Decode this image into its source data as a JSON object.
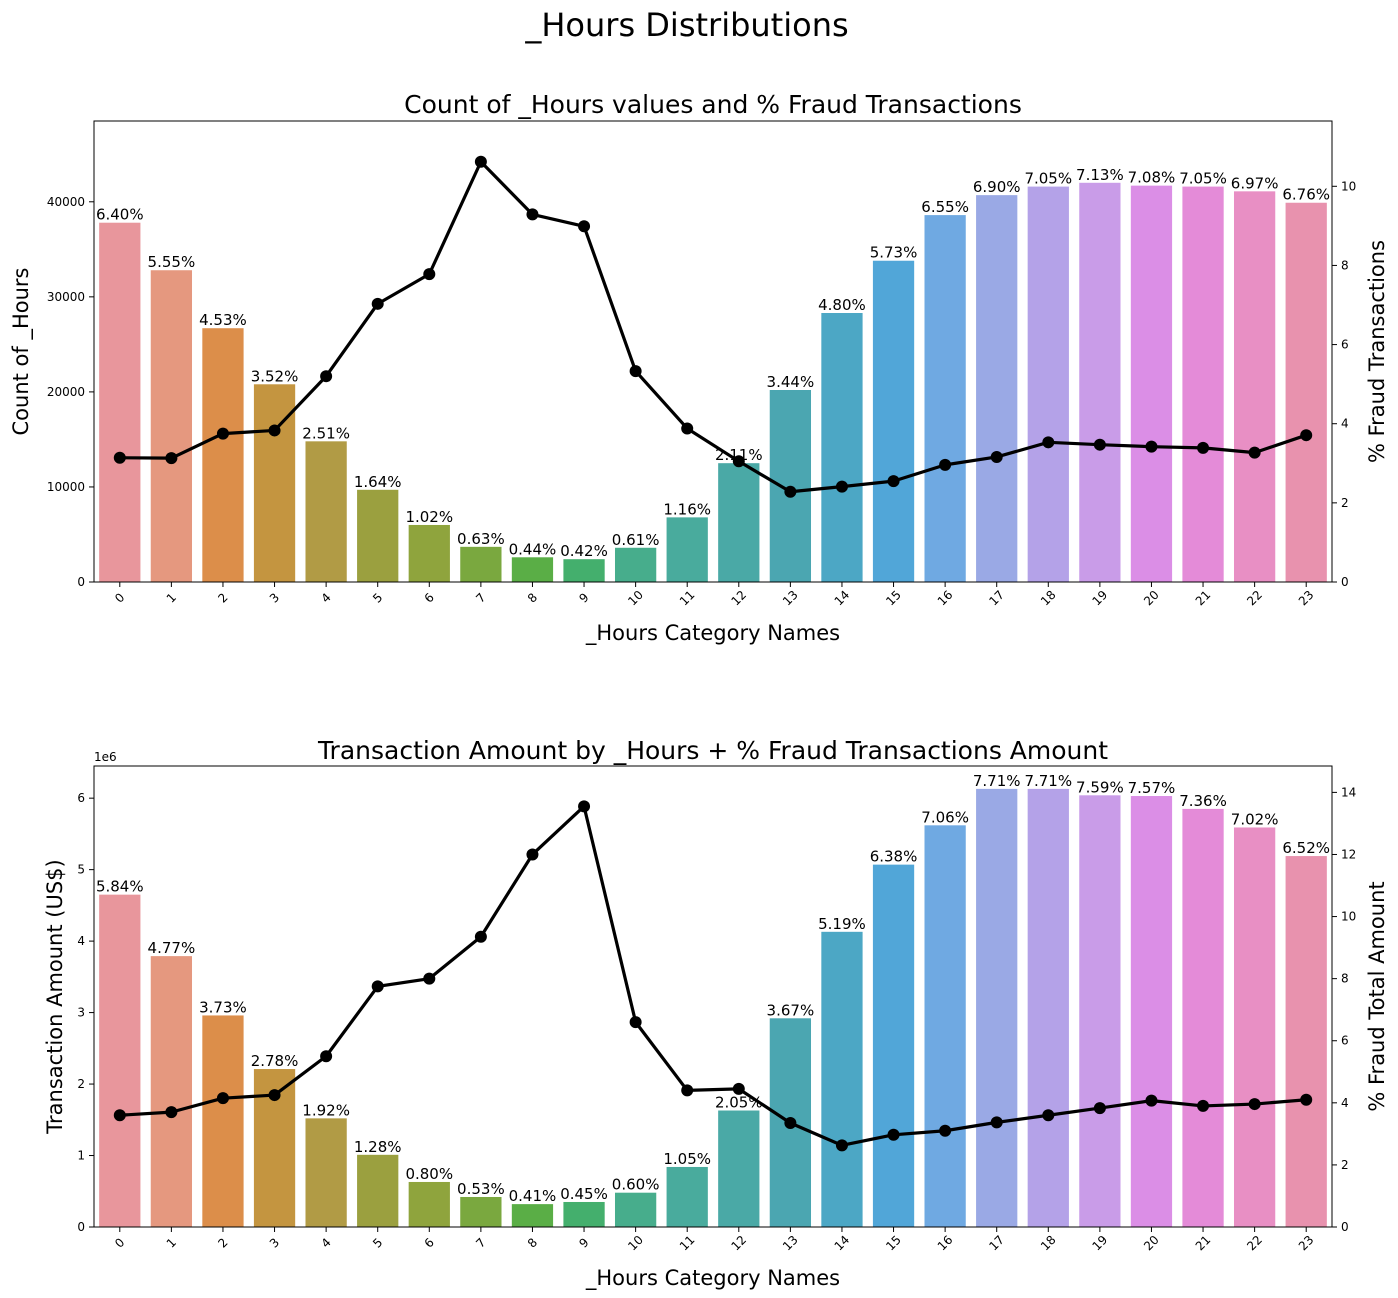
{
  "figure": {
    "suptitle": "_Hours Distributions"
  },
  "chart_data": [
    {
      "type": "bar",
      "title": "Count of _Hours values and % Fraud Transactions",
      "xlabel": "_Hours Category Names",
      "ylabel": "Count of _Hours",
      "y2label": "% Fraud Transactions",
      "categories": [
        "0",
        "1",
        "2",
        "3",
        "4",
        "5",
        "6",
        "7",
        "8",
        "9",
        "10",
        "11",
        "12",
        "13",
        "14",
        "15",
        "16",
        "17",
        "18",
        "19",
        "20",
        "21",
        "22",
        "23"
      ],
      "ylim": [
        0,
        48500
      ],
      "yticks": [
        0,
        10000,
        20000,
        30000,
        40000
      ],
      "ytick_labels": [
        "0",
        "10000",
        "20000",
        "30000",
        "40000"
      ],
      "y2lim": [
        0,
        11.65
      ],
      "y2ticks": [
        0,
        2,
        4,
        6,
        8,
        10
      ],
      "series": [
        {
          "name": "Count of _Hours",
          "type": "bar",
          "values": [
            37800,
            32800,
            26700,
            20800,
            14800,
            9700,
            6000,
            3700,
            2600,
            2400,
            3600,
            6800,
            12500,
            20200,
            28300,
            33800,
            38600,
            40700,
            41600,
            42000,
            41700,
            41600,
            41100,
            39900
          ]
        },
        {
          "name": "% Fraud Transactions",
          "type": "line",
          "axis": "secondary",
          "values": [
            3.14,
            3.13,
            3.75,
            3.83,
            5.2,
            7.03,
            7.78,
            10.62,
            9.29,
            8.99,
            5.33,
            3.88,
            3.05,
            2.28,
            2.41,
            2.55,
            2.96,
            3.16,
            3.53,
            3.47,
            3.42,
            3.39,
            3.27,
            3.71
          ]
        }
      ],
      "data_labels": [
        "6.40%",
        "5.55%",
        "4.53%",
        "3.52%",
        "2.51%",
        "1.64%",
        "1.02%",
        "0.63%",
        "0.44%",
        "0.42%",
        "0.61%",
        "1.16%",
        "2.11%",
        "3.44%",
        "4.80%",
        "5.73%",
        "6.55%",
        "6.90%",
        "7.05%",
        "7.13%",
        "7.08%",
        "7.05%",
        "6.97%",
        "6.76%"
      ],
      "bar_colors": [
        "#e8969c",
        "#e5987f",
        "#dc8e4a",
        "#c49540",
        "#b19b45",
        "#9ba03f",
        "#8fa43d",
        "#7aa83f",
        "#5aae46",
        "#44af6d",
        "#47ad8c",
        "#49ab9d",
        "#4aa9a6",
        "#4ba6b1",
        "#4ca7c5",
        "#51a6d8",
        "#6fa9e2",
        "#9aa9e5",
        "#b4a2e8",
        "#c99ce8",
        "#db8ee6",
        "#e48bd8",
        "#e88fc4",
        "#e892ae"
      ],
      "grid": false
    },
    {
      "type": "bar",
      "title": "Transaction Amount by _Hours + % Fraud Transactions Amount",
      "xlabel": "_Hours Category Names",
      "ylabel": "Transaction Amount (US$)",
      "y2label": "% Fraud Total Amount",
      "scale_label": "1e6",
      "categories": [
        "0",
        "1",
        "2",
        "3",
        "4",
        "5",
        "6",
        "7",
        "8",
        "9",
        "10",
        "11",
        "12",
        "13",
        "14",
        "15",
        "16",
        "17",
        "18",
        "19",
        "20",
        "21",
        "22",
        "23"
      ],
      "ylim": [
        0,
        6.45
      ],
      "yticks": [
        0,
        1,
        2,
        3,
        4,
        5,
        6
      ],
      "ytick_labels": [
        "0",
        "1",
        "2",
        "3",
        "4",
        "5",
        "6"
      ],
      "y2lim": [
        0,
        14.85
      ],
      "y2ticks": [
        0,
        2,
        4,
        6,
        8,
        10,
        12,
        14
      ],
      "series": [
        {
          "name": "Transaction Amount (US$)",
          "type": "bar",
          "values": [
            4.65,
            3.79,
            2.96,
            2.21,
            1.52,
            1.01,
            0.63,
            0.42,
            0.32,
            0.35,
            0.48,
            0.84,
            1.63,
            2.92,
            4.13,
            5.07,
            5.62,
            6.13,
            6.13,
            6.04,
            6.03,
            5.85,
            5.59,
            5.19
          ]
        },
        {
          "name": "% Fraud Total Amount",
          "type": "line",
          "axis": "secondary",
          "values": [
            3.6,
            3.7,
            4.15,
            4.25,
            5.5,
            7.75,
            8.0,
            9.35,
            12.0,
            13.55,
            6.6,
            4.4,
            4.45,
            3.35,
            2.63,
            2.97,
            3.1,
            3.37,
            3.6,
            3.83,
            4.07,
            3.9,
            3.96,
            4.1
          ]
        }
      ],
      "data_labels": [
        "5.84%",
        "4.77%",
        "3.73%",
        "2.78%",
        "1.92%",
        "1.28%",
        "0.80%",
        "0.53%",
        "0.41%",
        "0.45%",
        "0.60%",
        "1.05%",
        "2.05%",
        "3.67%",
        "5.19%",
        "6.38%",
        "7.06%",
        "7.71%",
        "7.71%",
        "7.59%",
        "7.57%",
        "7.36%",
        "7.02%",
        "6.52%"
      ],
      "bar_colors": [
        "#e8969c",
        "#e5987f",
        "#dc8e4a",
        "#c49540",
        "#b19b45",
        "#9ba03f",
        "#8fa43d",
        "#7aa83f",
        "#5aae46",
        "#44af6d",
        "#47ad8c",
        "#49ab9d",
        "#4aa9a6",
        "#4ba6b1",
        "#4ca7c5",
        "#51a6d8",
        "#6fa9e2",
        "#9aa9e5",
        "#b4a2e8",
        "#c99ce8",
        "#db8ee6",
        "#e48bd8",
        "#e88fc4",
        "#e892ae"
      ],
      "grid": false
    }
  ]
}
